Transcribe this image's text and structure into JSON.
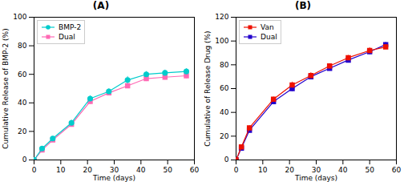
{
  "chart_data": [
    {
      "type": "line",
      "title": "(A)",
      "xlabel": "Time (days)",
      "ylabel": "Cumulative Release of BMP-2 (%)",
      "x": [
        0,
        3,
        7,
        14,
        21,
        28,
        35,
        42,
        49,
        57
      ],
      "xlim": [
        0,
        60
      ],
      "ylim": [
        0,
        100
      ],
      "xticks": [
        0,
        10,
        20,
        30,
        40,
        50,
        60
      ],
      "yticks": [
        0,
        20,
        40,
        60,
        80,
        100
      ],
      "grid": false,
      "legend": "upper left",
      "series": [
        {
          "name": "BMP-2",
          "color": "#00CCCC",
          "marker": "circle",
          "values": [
            0,
            8,
            15,
            26,
            43,
            48,
            56,
            60,
            61,
            62
          ],
          "errors": [
            0.0,
            1.2,
            1.5,
            2.0,
            2.0,
            2.0,
            2.5,
            2.0,
            2.0,
            2.0
          ]
        },
        {
          "name": "Dual",
          "color": "#FF69B4",
          "marker": "square",
          "values": [
            0,
            7,
            14,
            25,
            41,
            47,
            52,
            57,
            58,
            59
          ],
          "errors": [
            0.0,
            1.2,
            1.5,
            2.0,
            2.0,
            2.0,
            2.0,
            2.0,
            2.0,
            2.0
          ]
        }
      ]
    },
    {
      "type": "line",
      "title": "(B)",
      "xlabel": "Time (days)",
      "ylabel": "Cumulative of Release Drug (%)",
      "x": [
        0,
        2,
        5,
        14,
        21,
        28,
        35,
        42,
        50,
        56
      ],
      "xlim": [
        0,
        60
      ],
      "ylim": [
        0,
        120
      ],
      "xticks": [
        0,
        10,
        20,
        30,
        40,
        50,
        60
      ],
      "yticks": [
        0,
        20,
        40,
        60,
        80,
        100,
        120
      ],
      "grid": false,
      "legend": "upper left",
      "series": [
        {
          "name": "Van",
          "color": "#EE1100",
          "marker": "square",
          "values": [
            0,
            11,
            27,
            51,
            63,
            71,
            79,
            86,
            92,
            95
          ],
          "errors": [
            0.0,
            1.5,
            2.0,
            2.0,
            2.5,
            2.5,
            2.0,
            2.0,
            2.5,
            2.0
          ]
        },
        {
          "name": "Dual",
          "color": "#2200CC",
          "marker": "square",
          "values": [
            0,
            10,
            25,
            49,
            60,
            70,
            77,
            84,
            91,
            97
          ],
          "errors": [
            0.0,
            1.5,
            2.0,
            2.0,
            2.5,
            2.5,
            2.0,
            2.0,
            2.5,
            2.0
          ]
        }
      ]
    }
  ]
}
